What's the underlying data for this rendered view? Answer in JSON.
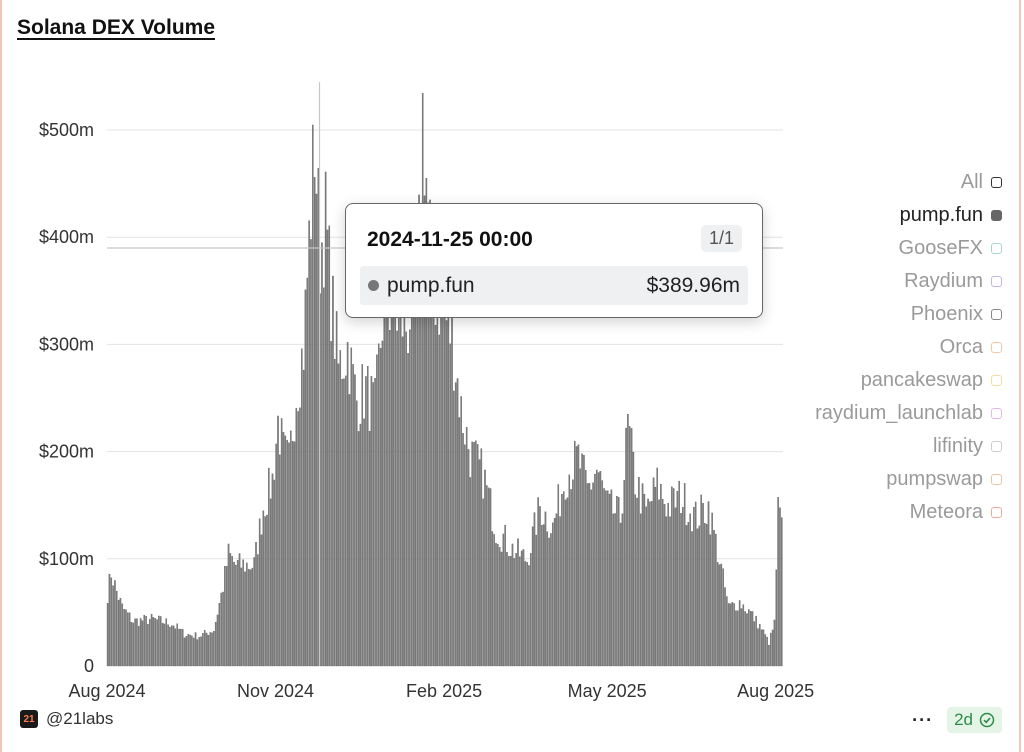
{
  "header": {
    "title": "Solana DEX Volume"
  },
  "chart_data": {
    "type": "bar",
    "title": "Solana DEX Volume",
    "series_name": "pump.fun",
    "bar_color": "#7f7f7f",
    "yticks": [
      {
        "value": 0,
        "label": "0"
      },
      {
        "value": 100,
        "label": "$100m"
      },
      {
        "value": 200,
        "label": "$200m"
      },
      {
        "value": 300,
        "label": "$300m"
      },
      {
        "value": 400,
        "label": "$400m"
      },
      {
        "value": 500,
        "label": "$500m"
      }
    ],
    "xticks": [
      {
        "date": "2024-08-01",
        "label": "Aug 2024"
      },
      {
        "date": "2024-11-01",
        "label": "Nov 2024"
      },
      {
        "date": "2025-02-01",
        "label": "Feb 2025"
      },
      {
        "date": "2025-05-01",
        "label": "May 2025"
      },
      {
        "date": "2025-08-01",
        "label": "Aug 2025"
      }
    ],
    "xlim": [
      "2024-08-01",
      "2025-08-05"
    ],
    "ylim": [
      0,
      550
    ],
    "grid": true,
    "keypoints": [
      [
        "2024-08-01",
        68
      ],
      [
        "2024-08-03",
        88
      ],
      [
        "2024-08-06",
        70
      ],
      [
        "2024-08-09",
        55
      ],
      [
        "2024-08-15",
        42
      ],
      [
        "2024-08-25",
        44
      ],
      [
        "2024-09-05",
        40
      ],
      [
        "2024-09-12",
        30
      ],
      [
        "2024-09-20",
        28
      ],
      [
        "2024-09-28",
        34
      ],
      [
        "2024-10-03",
        75
      ],
      [
        "2024-10-06",
        105
      ],
      [
        "2024-10-10",
        95
      ],
      [
        "2024-10-20",
        95
      ],
      [
        "2024-10-25",
        150
      ],
      [
        "2024-10-30",
        175
      ],
      [
        "2024-11-02",
        230
      ],
      [
        "2024-11-05",
        200
      ],
      [
        "2024-11-08",
        190
      ],
      [
        "2024-11-12",
        260
      ],
      [
        "2024-11-16",
        300
      ],
      [
        "2024-11-19",
        400
      ],
      [
        "2024-11-22",
        495
      ],
      [
        "2024-11-25",
        390
      ],
      [
        "2024-11-28",
        420
      ],
      [
        "2024-12-01",
        350
      ],
      [
        "2024-12-05",
        280
      ],
      [
        "2024-12-10",
        300
      ],
      [
        "2024-12-15",
        250
      ],
      [
        "2024-12-20",
        260
      ],
      [
        "2024-12-25",
        240
      ],
      [
        "2024-12-30",
        350
      ],
      [
        "2025-01-05",
        330
      ],
      [
        "2025-01-12",
        320
      ],
      [
        "2025-01-18",
        400
      ],
      [
        "2025-01-20",
        520
      ],
      [
        "2025-01-23",
        430
      ],
      [
        "2025-01-27",
        350
      ],
      [
        "2025-02-01",
        330
      ],
      [
        "2025-02-05",
        310
      ],
      [
        "2025-02-10",
        240
      ],
      [
        "2025-02-15",
        200
      ],
      [
        "2025-02-22",
        180
      ],
      [
        "2025-03-01",
        130
      ],
      [
        "2025-03-10",
        110
      ],
      [
        "2025-03-18",
        100
      ],
      [
        "2025-03-25",
        150
      ],
      [
        "2025-04-01",
        130
      ],
      [
        "2025-04-08",
        180
      ],
      [
        "2025-04-15",
        195
      ],
      [
        "2025-04-20",
        165
      ],
      [
        "2025-04-25",
        185
      ],
      [
        "2025-05-01",
        150
      ],
      [
        "2025-05-08",
        140
      ],
      [
        "2025-05-12",
        225
      ],
      [
        "2025-05-16",
        175
      ],
      [
        "2025-05-22",
        145
      ],
      [
        "2025-05-28",
        170
      ],
      [
        "2025-06-03",
        150
      ],
      [
        "2025-06-10",
        160
      ],
      [
        "2025-06-18",
        140
      ],
      [
        "2025-06-25",
        150
      ],
      [
        "2025-07-01",
        100
      ],
      [
        "2025-07-06",
        55
      ],
      [
        "2025-07-12",
        60
      ],
      [
        "2025-07-18",
        50
      ],
      [
        "2025-07-24",
        35
      ],
      [
        "2025-07-28",
        22
      ],
      [
        "2025-07-31",
        40
      ],
      [
        "2025-08-02",
        145
      ],
      [
        "2025-08-04",
        132
      ]
    ]
  },
  "legend": {
    "items": [
      {
        "label": "All",
        "color": "#333333",
        "active": false
      },
      {
        "label": "pump.fun",
        "color": "#666666",
        "active": true
      },
      {
        "label": "GooseFX",
        "color": "#a5d6cf",
        "active": false
      },
      {
        "label": "Raydium",
        "color": "#c4b3e6",
        "active": false
      },
      {
        "label": "Phoenix",
        "color": "#888888",
        "active": false
      },
      {
        "label": "Orca",
        "color": "#f3c7a5",
        "active": false
      },
      {
        "label": "pancakeswap",
        "color": "#f3dda0",
        "active": false
      },
      {
        "label": "raydium_launchlab",
        "color": "#e3b7e6",
        "active": false
      },
      {
        "label": "lifinity",
        "color": "#cccccc",
        "active": false
      },
      {
        "label": "pumpswap",
        "color": "#e8c3a6",
        "active": false
      },
      {
        "label": "Meteora",
        "color": "#eeaaa0",
        "active": false
      }
    ]
  },
  "tooltip": {
    "date": "2024-11-25 00:00",
    "page": "1/1",
    "series": "pump.fun",
    "value": "$389.96m",
    "value_m": 389.96
  },
  "footer": {
    "logo_text": "21",
    "handle": "@21labs",
    "more": "···",
    "badge": "2d"
  }
}
